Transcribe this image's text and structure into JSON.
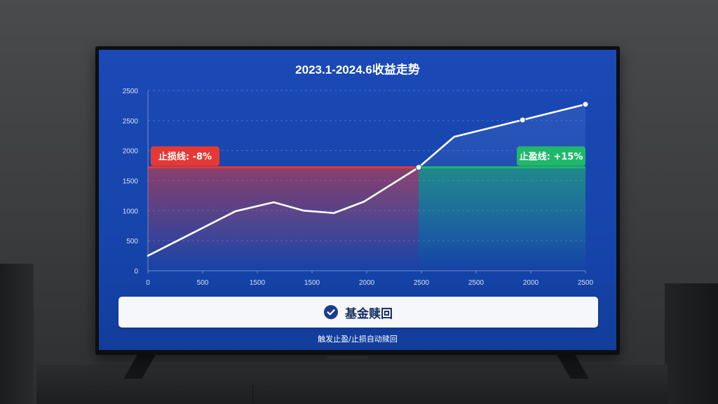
{
  "chart_data": {
    "type": "line",
    "title": "2023.1-2024.6收益走势",
    "xlabel": "",
    "ylabel": "",
    "x_tick_labels": [
      "0",
      "500",
      "1500",
      "1500",
      "2000",
      "2500",
      "2500",
      "2000",
      "2500"
    ],
    "y_tick_labels": [
      "0",
      "500",
      "1000",
      "1500",
      "2000",
      "2500",
      "2500"
    ],
    "ylim": [
      0,
      3000
    ],
    "grid": true,
    "series": [
      {
        "color": "#ffffff",
        "points": [
          {
            "x": 0,
            "y": 250
          },
          {
            "x": 1.6,
            "y": 990
          },
          {
            "x": 2.3,
            "y": 1140
          },
          {
            "x": 2.85,
            "y": 1000
          },
          {
            "x": 3.4,
            "y": 960
          },
          {
            "x": 3.95,
            "y": 1150
          },
          {
            "x": 4.95,
            "y": 1720
          },
          {
            "x": 5.6,
            "y": 2230
          },
          {
            "x": 6.85,
            "y": 2510
          },
          {
            "x": 8.0,
            "y": 2770
          }
        ],
        "markers": [
          6,
          8,
          9
        ]
      }
    ],
    "stop_loss": {
      "label": "止损线: -8%",
      "value": 1720,
      "color": "#e53935"
    },
    "take_profit": {
      "label": "止盈线: +15%",
      "value": 1720,
      "color": "#1fb86a"
    }
  },
  "action": {
    "button_label": "基金赎回",
    "icon": "check-circle-icon",
    "footnote": "触发止盈/止损自动赎回"
  },
  "colors": {
    "screen_bg": "#1b49b6",
    "red_zone": "#e53935",
    "green_zone": "#1fb86a"
  }
}
